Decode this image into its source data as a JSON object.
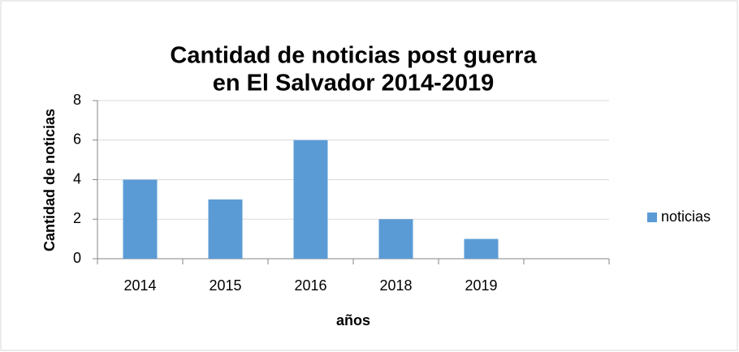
{
  "chart_data": {
    "type": "bar",
    "title": [
      "Cantidad de noticias post guerra",
      "en El Salvador 2014-2019"
    ],
    "xlabel": "años",
    "ylabel": "Cantidad de noticias",
    "categories": [
      "2014",
      "2015",
      "2016",
      "2018",
      "2019",
      null
    ],
    "series": [
      {
        "name": "noticias",
        "color": "#5b9bd5",
        "values": [
          4,
          3,
          6,
          2,
          1,
          null
        ]
      }
    ],
    "ylim": [
      0,
      8
    ],
    "yticks": [
      0,
      2,
      4,
      6,
      8
    ],
    "grid": true,
    "legend": "right"
  }
}
